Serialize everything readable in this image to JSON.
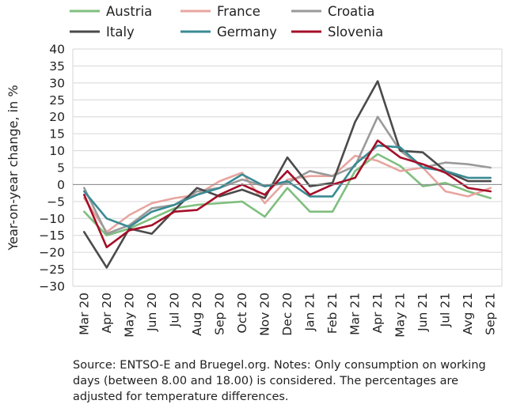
{
  "chart_data": {
    "type": "line",
    "ylabel": "Year-on-year change, in %",
    "ylim": [
      -30,
      40
    ],
    "yticks": [
      40,
      35,
      30,
      25,
      20,
      15,
      10,
      5,
      0,
      -5,
      -10,
      -15,
      -20,
      -25,
      -30
    ],
    "grid": "horizontal",
    "legend_position": "top",
    "categories": [
      "Mar 20",
      "Apr 20",
      "May 20",
      "Jun 20",
      "Jul 20",
      "Aug 20",
      "Sep 20",
      "Oct 20",
      "Nov 20",
      "Dec 20",
      "Jan 21",
      "Feb 21",
      "Mar 21",
      "Apr 21",
      "May 21",
      "Jun 21",
      "Jul 21",
      "Avg 21",
      "Sep 21"
    ],
    "series": [
      {
        "name": "Austria",
        "color": "#7fbf7f",
        "values": [
          -8,
          -15,
          -13,
          -10,
          -7,
          -6,
          -5.5,
          -5,
          -9.5,
          -1,
          -8,
          -8,
          4,
          9,
          5.5,
          -0.5,
          0.5,
          -2,
          -4
        ]
      },
      {
        "name": "France",
        "color": "#e8a5a0",
        "values": [
          -4,
          -14,
          -9,
          -5.5,
          -4,
          -3,
          1,
          3.5,
          -5.5,
          1.5,
          2.5,
          2.5,
          8.5,
          7,
          4,
          5,
          -2,
          -3.5,
          -1
        ]
      },
      {
        "name": "Croatia",
        "color": "#9a9a9a",
        "values": [
          -1,
          -14.5,
          -12,
          -7,
          -6,
          -2,
          -1,
          1.5,
          -0.5,
          0.5,
          4,
          2.5,
          5.5,
          20,
          10,
          5,
          6.5,
          6,
          5
        ]
      },
      {
        "name": "Italy",
        "color": "#4a4a4a",
        "values": [
          -14,
          -24.5,
          -13,
          -14.5,
          -7.5,
          -1,
          -3.5,
          -1.5,
          -4,
          8,
          -0.5,
          0.5,
          18.5,
          30.5,
          10,
          9.5,
          4,
          1,
          1
        ]
      },
      {
        "name": "Germany",
        "color": "#3a8a93",
        "values": [
          -2,
          -10,
          -12.5,
          -8,
          -6,
          -3,
          -1,
          3,
          -0.5,
          1,
          -3.5,
          -3.5,
          6,
          11.5,
          11,
          5,
          4,
          2,
          2
        ]
      },
      {
        "name": "Slovenia",
        "color": "#a50f28",
        "values": [
          -3,
          -18.5,
          -13.5,
          -12,
          -8,
          -7.5,
          -3,
          0,
          -3,
          4,
          -3,
          0,
          2,
          13,
          8,
          6,
          3.5,
          -1,
          -2
        ]
      }
    ]
  },
  "source_note": "Source: ENTSO-E and Bruegel.org. Notes: Only consumption on working days (between 8.00 and 18.00) is considered. The percentages are adjusted for temperature differences.",
  "colors": {
    "grid": "#d6d6d6",
    "axis": "#888888"
  }
}
